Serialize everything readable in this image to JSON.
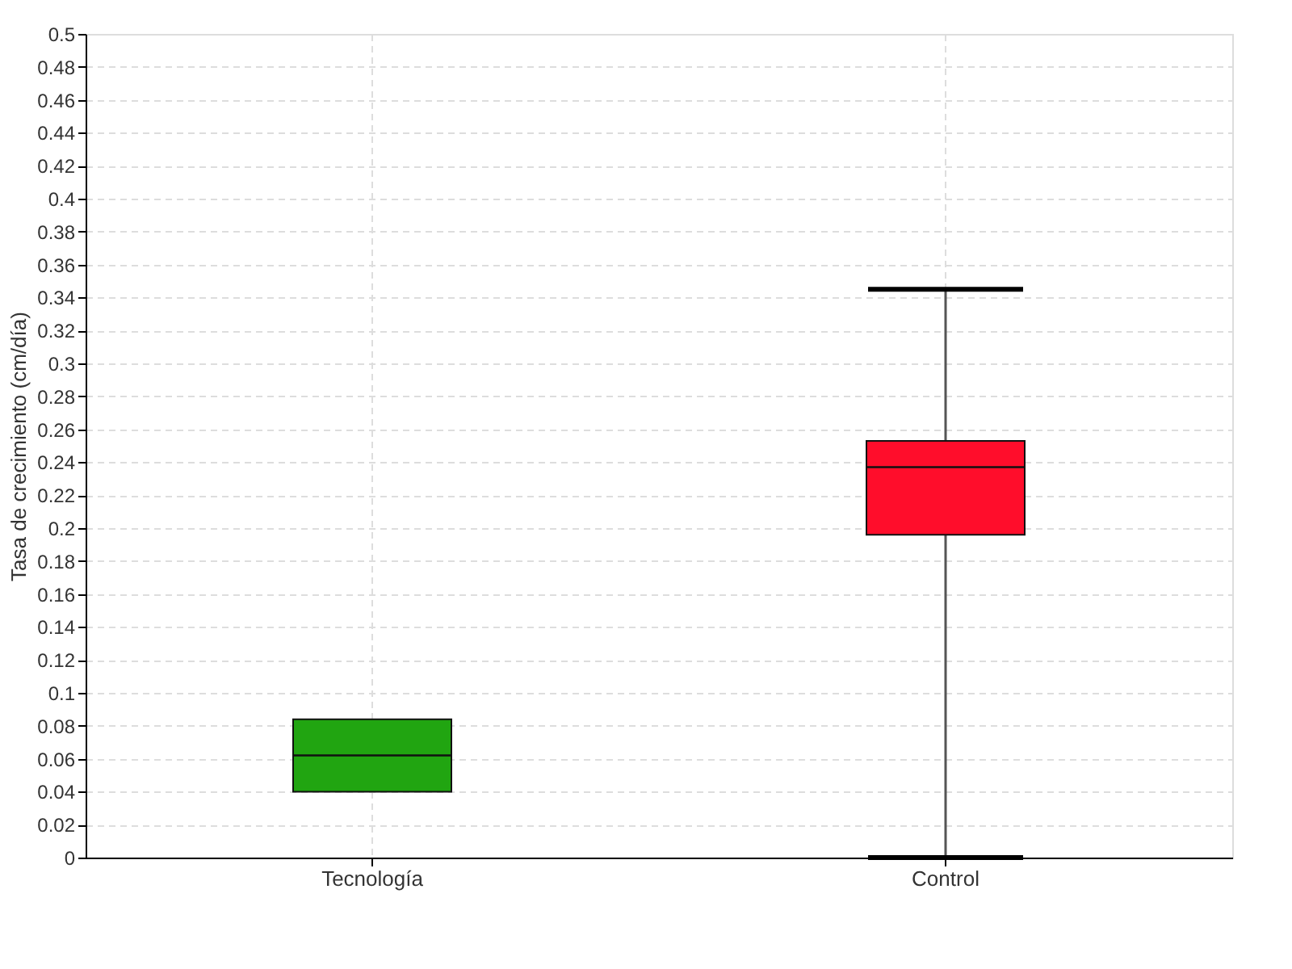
{
  "chart_data": {
    "type": "box",
    "ylabel": "Tasa de crecimiento (cm/día)",
    "categories": [
      "Tecnología",
      "Control"
    ],
    "colors": [
      "#21a511",
      "#ff0d2b"
    ],
    "boxes": [
      {
        "low": 0.04,
        "q1": 0.04,
        "median": 0.062,
        "q3": 0.084,
        "high": 0.084
      },
      {
        "low": 0.0,
        "q1": 0.196,
        "median": 0.237,
        "q3": 0.253,
        "high": 0.345
      }
    ],
    "ylim": [
      0,
      0.5
    ],
    "yticks": [
      0,
      0.02,
      0.04,
      0.06,
      0.08,
      0.1,
      0.12,
      0.14,
      0.16,
      0.18,
      0.2,
      0.22,
      0.24,
      0.26,
      0.28,
      0.3,
      0.32,
      0.34,
      0.36,
      0.38,
      0.4,
      0.42,
      0.44,
      0.46,
      0.48,
      0.5
    ],
    "grid": true
  }
}
